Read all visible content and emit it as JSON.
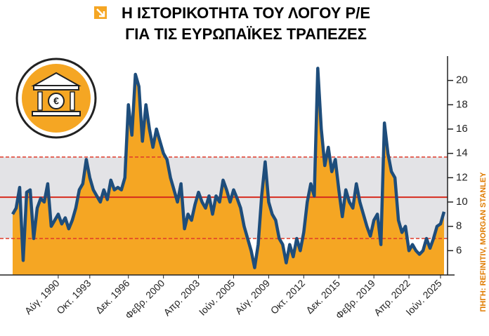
{
  "chart_data": {
    "type": "area",
    "title": [
      "Η ΙΣΤΟΡΙΚΟΤΗΤΑ ΤΟΥ ΛΟΓΟΥ P/E",
      "ΓΙΑ ΤΙΣ ΕΥΡΩΠΑΪΚΕΣ ΤΡΑΠΕΖΕΣ"
    ],
    "source": "ΠΗΓΗ: REFINITIV, MORGAN STANLEY",
    "color": "#f5a623",
    "line_color": "#1e4d7b",
    "values": [
      9.0,
      9.5,
      11.2,
      5.2,
      10.8,
      11.0,
      7.0,
      9.5,
      10.3,
      10.0,
      11.5,
      8.0,
      8.5,
      9.0,
      8.2,
      8.7,
      7.8,
      8.5,
      9.5,
      11.0,
      11.5,
      13.5,
      12.0,
      11.0,
      10.5,
      10.0,
      11.0,
      10.2,
      11.8,
      11.0,
      11.2,
      11.0,
      12.0,
      18.0,
      15.5,
      20.5,
      19.5,
      15.0,
      18.0,
      16.0,
      14.5,
      16.0,
      15.0,
      14.0,
      13.5,
      12.0,
      11.0,
      10.0,
      11.5,
      7.8,
      9.0,
      8.5,
      9.8,
      10.8,
      10.0,
      9.5,
      10.5,
      9.0,
      10.5,
      10.0,
      11.8,
      11.0,
      10.0,
      11.0,
      10.3,
      9.5,
      8.0,
      7.0,
      6.0,
      4.6,
      6.5,
      10.5,
      13.3,
      10.0,
      9.0,
      8.5,
      7.0,
      6.5,
      5.0,
      6.5,
      5.5,
      7.0,
      6.0,
      7.5,
      10.0,
      11.5,
      10.5,
      21.0,
      16.0,
      13.0,
      14.5,
      12.5,
      13.5,
      11.0,
      8.8,
      11.0,
      10.0,
      9.5,
      11.5,
      10.0,
      9.0,
      8.0,
      7.2,
      8.5,
      9.0,
      6.5,
      16.5,
      14.0,
      12.5,
      12.0,
      8.5,
      7.5,
      8.0,
      6.0,
      6.5,
      6.0,
      5.7,
      6.0,
      7.0,
      6.2,
      7.0,
      8.0,
      8.2,
      9.2
    ],
    "xlim": [
      0,
      123
    ],
    "xticks": [
      {
        "value": 13,
        "label": "Αύγ. 1990"
      },
      {
        "value": 22,
        "label": "Οκτ. 1993"
      },
      {
        "value": 33,
        "label": "Δεκ. 1996"
      },
      {
        "value": 43,
        "label": "Φεβρ. 2000"
      },
      {
        "value": 53,
        "label": "Απρ. 2003"
      },
      {
        "value": 63,
        "label": "Ιούν. 2005"
      },
      {
        "value": 73,
        "label": "Αύγ. 2009"
      },
      {
        "value": 83,
        "label": "Οκτ. 2012"
      },
      {
        "value": 93,
        "label": "Δεκ. 2015"
      },
      {
        "value": 103,
        "label": "Φεβρ. 2019"
      },
      {
        "value": 113,
        "label": "Απρ. 2022"
      },
      {
        "value": 122,
        "label": "Ιούν. 2025"
      }
    ],
    "ylim": [
      4,
      22
    ],
    "yticks": [
      6,
      8,
      10,
      12,
      14,
      16,
      18,
      20
    ],
    "band": [
      7,
      13.7
    ],
    "mean": 10.4
  }
}
